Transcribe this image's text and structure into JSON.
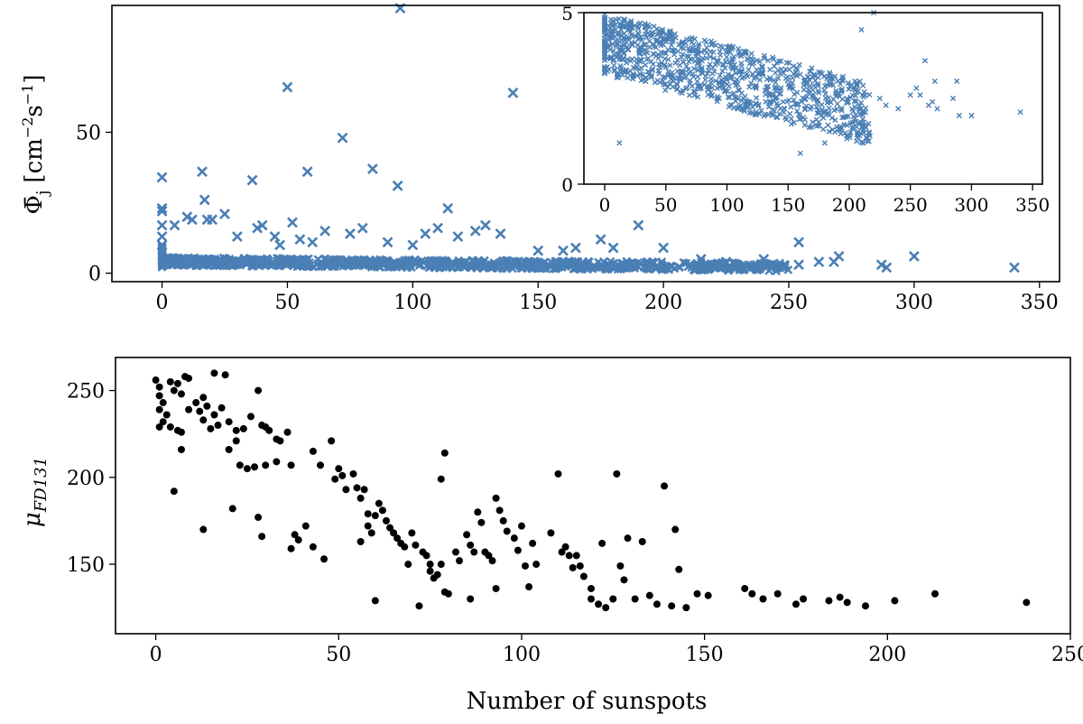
{
  "chart_data": [
    {
      "type": "scatter",
      "name": "top-main",
      "marker": "x",
      "color": "#4a7fb5",
      "xlabel": "",
      "ylabel": "Φ̄j [cm⁻²s⁻¹]",
      "ylabel_parts": {
        "main": "Φ̄",
        "sub": "j",
        "unit_open": "[cm",
        "unit_exp1": "−2",
        "unit_mid": "s",
        "unit_exp2": "−1",
        "unit_close": "]"
      },
      "xlim": [
        -20,
        358
      ],
      "ylim": [
        -3,
        95
      ],
      "xticks": [
        0,
        50,
        100,
        150,
        200,
        250,
        300,
        350
      ],
      "yticks": [
        0,
        50
      ],
      "outliers": [
        [
          0,
          34
        ],
        [
          0,
          23
        ],
        [
          0,
          22
        ],
        [
          0,
          17
        ],
        [
          0,
          13
        ],
        [
          0,
          10
        ],
        [
          5,
          17
        ],
        [
          10,
          20
        ],
        [
          12,
          19
        ],
        [
          16,
          36
        ],
        [
          17,
          26
        ],
        [
          18,
          19
        ],
        [
          20,
          19
        ],
        [
          25,
          21
        ],
        [
          30,
          13
        ],
        [
          36,
          33
        ],
        [
          38,
          16
        ],
        [
          40,
          17
        ],
        [
          45,
          13
        ],
        [
          47,
          10
        ],
        [
          50,
          66
        ],
        [
          52,
          18
        ],
        [
          55,
          12
        ],
        [
          58,
          36
        ],
        [
          60,
          11
        ],
        [
          65,
          15
        ],
        [
          72,
          48
        ],
        [
          75,
          14
        ],
        [
          80,
          16
        ],
        [
          84,
          37
        ],
        [
          90,
          11
        ],
        [
          94,
          31
        ],
        [
          95,
          94
        ],
        [
          100,
          10
        ],
        [
          105,
          14
        ],
        [
          110,
          16
        ],
        [
          114,
          23
        ],
        [
          118,
          13
        ],
        [
          125,
          15
        ],
        [
          129,
          17
        ],
        [
          135,
          14
        ],
        [
          140,
          64
        ],
        [
          150,
          8
        ],
        [
          160,
          8
        ],
        [
          165,
          9
        ],
        [
          175,
          12
        ],
        [
          180,
          9
        ],
        [
          190,
          17
        ],
        [
          200,
          9
        ],
        [
          215,
          5
        ],
        [
          225,
          4
        ],
        [
          240,
          5
        ],
        [
          254,
          11
        ],
        [
          254,
          3
        ],
        [
          262,
          4
        ],
        [
          268,
          4
        ],
        [
          270,
          6
        ],
        [
          287,
          3
        ],
        [
          289,
          2
        ],
        [
          300,
          6
        ],
        [
          340,
          2
        ]
      ],
      "band_description": "dense band of values between 1 and 6 for 0–250 sunspots"
    },
    {
      "type": "scatter",
      "name": "inset",
      "marker": "x",
      "color": "#4a7fb5",
      "xlim": [
        -17,
        358
      ],
      "ylim": [
        0,
        5
      ],
      "xticks": [
        0,
        50,
        100,
        150,
        200,
        250,
        300,
        350
      ],
      "yticks": [
        0,
        5
      ],
      "sparse_points": [
        [
          210,
          4.5
        ],
        [
          220,
          5
        ],
        [
          225,
          2.5
        ],
        [
          230,
          2.3
        ],
        [
          240,
          2.2
        ],
        [
          250,
          2.6
        ],
        [
          255,
          2.8
        ],
        [
          258,
          2.6
        ],
        [
          262,
          3.6
        ],
        [
          265,
          2.3
        ],
        [
          268,
          2.4
        ],
        [
          270,
          3.0
        ],
        [
          272,
          2.2
        ],
        [
          285,
          2.5
        ],
        [
          288,
          3.0
        ],
        [
          290,
          2.0
        ],
        [
          300,
          2.0
        ],
        [
          340,
          2.1
        ],
        [
          160,
          0.9
        ],
        [
          180,
          1.2
        ],
        [
          12,
          1.2
        ]
      ]
    },
    {
      "type": "scatter",
      "name": "bottom",
      "marker": "o",
      "color": "#000000",
      "xlabel": "Number of sunspots",
      "ylabel": "μFD131",
      "ylabel_parts": {
        "main": "μ",
        "sub": "FD131"
      },
      "xlim": [
        -11,
        250
      ],
      "ylim": [
        110,
        269
      ],
      "xticks": [
        0,
        50,
        100,
        150,
        200,
        250
      ],
      "yticks": [
        150,
        200,
        250
      ],
      "points": [
        [
          0,
          256
        ],
        [
          1,
          252
        ],
        [
          1,
          247
        ],
        [
          2,
          243
        ],
        [
          1,
          239
        ],
        [
          3,
          236
        ],
        [
          2,
          232
        ],
        [
          1,
          229
        ],
        [
          4,
          255
        ],
        [
          5,
          250
        ],
        [
          6,
          254
        ],
        [
          8,
          258
        ],
        [
          9,
          257
        ],
        [
          7,
          248
        ],
        [
          4,
          229
        ],
        [
          6,
          227
        ],
        [
          9,
          239
        ],
        [
          11,
          243
        ],
        [
          13,
          233
        ],
        [
          14,
          241
        ],
        [
          15,
          228
        ],
        [
          16,
          236
        ],
        [
          17,
          230
        ],
        [
          7,
          226
        ],
        [
          7,
          216
        ],
        [
          12,
          238
        ],
        [
          13,
          246
        ],
        [
          16,
          260
        ],
        [
          19,
          259
        ],
        [
          18,
          240
        ],
        [
          20,
          232
        ],
        [
          22,
          227
        ],
        [
          24,
          228
        ],
        [
          26,
          235
        ],
        [
          28,
          250
        ],
        [
          29,
          230
        ],
        [
          30,
          229
        ],
        [
          31,
          227
        ],
        [
          33,
          222
        ],
        [
          34,
          221
        ],
        [
          36,
          226
        ],
        [
          23,
          207
        ],
        [
          25,
          205
        ],
        [
          27,
          206
        ],
        [
          20,
          216
        ],
        [
          22,
          221
        ],
        [
          30,
          207
        ],
        [
          33,
          209
        ],
        [
          37,
          207
        ],
        [
          5,
          192
        ],
        [
          13,
          170
        ],
        [
          21,
          182
        ],
        [
          28,
          177
        ],
        [
          29,
          166
        ],
        [
          37,
          159
        ],
        [
          38,
          167
        ],
        [
          39,
          164
        ],
        [
          43,
          160
        ],
        [
          43,
          215
        ],
        [
          45,
          207
        ],
        [
          48,
          221
        ],
        [
          49,
          199
        ],
        [
          50,
          205
        ],
        [
          51,
          201
        ],
        [
          52,
          193
        ],
        [
          54,
          202
        ],
        [
          55,
          194
        ],
        [
          56,
          188
        ],
        [
          57,
          193
        ],
        [
          58,
          179
        ],
        [
          58,
          172
        ],
        [
          59,
          168
        ],
        [
          60,
          178
        ],
        [
          61,
          185
        ],
        [
          62,
          181
        ],
        [
          63,
          175
        ],
        [
          64,
          171
        ],
        [
          65,
          168
        ],
        [
          66,
          165
        ],
        [
          67,
          162
        ],
        [
          68,
          160
        ],
        [
          69,
          150
        ],
        [
          70,
          168
        ],
        [
          71,
          161
        ],
        [
          73,
          157
        ],
        [
          74,
          155
        ],
        [
          75,
          150
        ],
        [
          75,
          146
        ],
        [
          76,
          142
        ],
        [
          77,
          144
        ],
        [
          78,
          150
        ],
        [
          79,
          134
        ],
        [
          80,
          133
        ],
        [
          82,
          157
        ],
        [
          83,
          152
        ],
        [
          85,
          167
        ],
        [
          86,
          161
        ],
        [
          87,
          157
        ],
        [
          88,
          180
        ],
        [
          89,
          174
        ],
        [
          90,
          157
        ],
        [
          91,
          155
        ],
        [
          92,
          152
        ],
        [
          93,
          188
        ],
        [
          94,
          181
        ],
        [
          95,
          175
        ],
        [
          96,
          169
        ],
        [
          98,
          165
        ],
        [
          99,
          158
        ],
        [
          100,
          172
        ],
        [
          101,
          149
        ],
        [
          103,
          162
        ],
        [
          104,
          150
        ],
        [
          108,
          168
        ],
        [
          110,
          202
        ],
        [
          111,
          157
        ],
        [
          112,
          160
        ],
        [
          113,
          155
        ],
        [
          114,
          148
        ],
        [
          115,
          155
        ],
        [
          116,
          149
        ],
        [
          117,
          143
        ],
        [
          119,
          130
        ],
        [
          121,
          127
        ],
        [
          122,
          162
        ],
        [
          123,
          125
        ],
        [
          125,
          130
        ],
        [
          126,
          202
        ],
        [
          127,
          149
        ],
        [
          128,
          141
        ],
        [
          129,
          165
        ],
        [
          131,
          130
        ],
        [
          133,
          163
        ],
        [
          135,
          132
        ],
        [
          137,
          127
        ],
        [
          139,
          195
        ],
        [
          141,
          126
        ],
        [
          142,
          170
        ],
        [
          143,
          147
        ],
        [
          145,
          125
        ],
        [
          148,
          133
        ],
        [
          151,
          132
        ],
        [
          161,
          136
        ],
        [
          163,
          133
        ],
        [
          166,
          130
        ],
        [
          170,
          133
        ],
        [
          175,
          127
        ],
        [
          177,
          130
        ],
        [
          184,
          129
        ],
        [
          187,
          131
        ],
        [
          189,
          128
        ],
        [
          194,
          126
        ],
        [
          202,
          129
        ],
        [
          213,
          133
        ],
        [
          238,
          128
        ],
        [
          56,
          163
        ],
        [
          41,
          172
        ],
        [
          46,
          153
        ],
        [
          60,
          129
        ],
        [
          72,
          126
        ],
        [
          86,
          130
        ],
        [
          93,
          136
        ],
        [
          78,
          199
        ],
        [
          79,
          214
        ],
        [
          102,
          137
        ],
        [
          119,
          136
        ]
      ]
    }
  ]
}
